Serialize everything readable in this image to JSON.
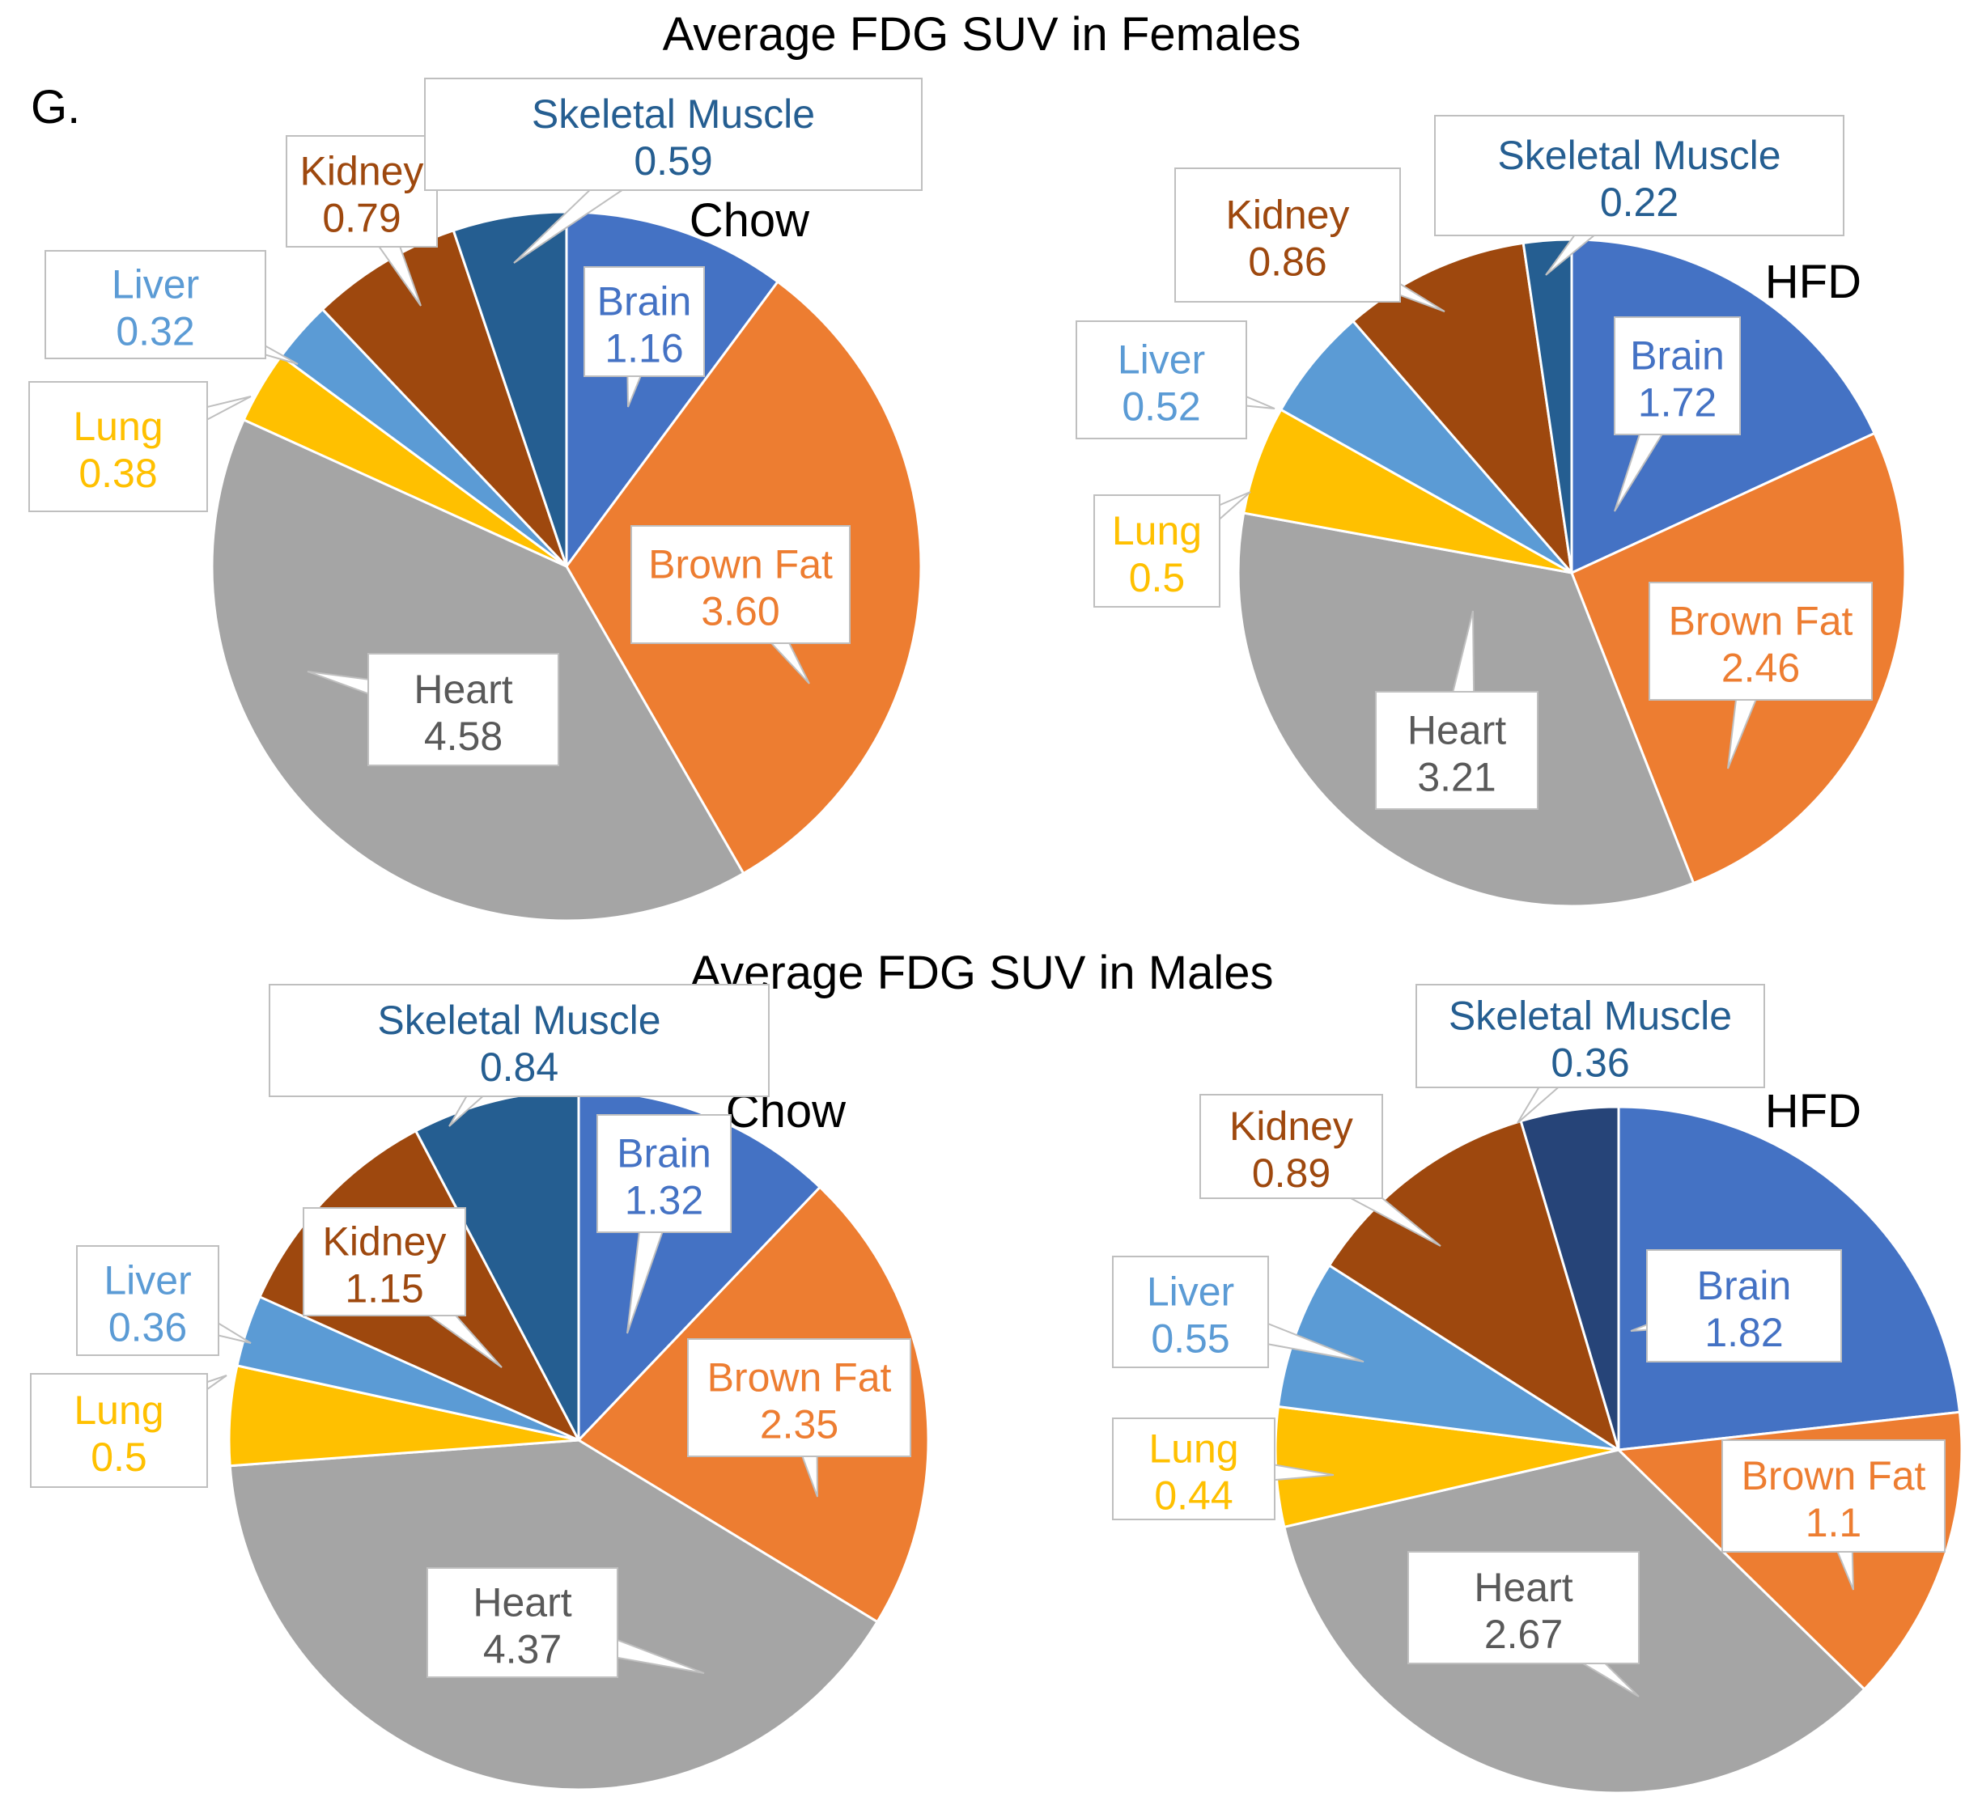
{
  "panel_label": "G.",
  "colors": {
    "Brain": "#4472C4",
    "Brown Fat": "#ED7D31",
    "Heart": "#A5A5A5",
    "Lung": "#FFC000",
    "Liver": "#5B9BD5",
    "Kidney": "#9E480E",
    "Skeletal Muscle": "#255E91",
    "Skeletal Muscle (dark)": "#264478",
    "Heart text": "#595959",
    "Brown Fat text": "#ED7D31",
    "Liver text": "#5B9BD5",
    "Lung text": "#FFC000",
    "Brain text": "#4472C4",
    "Kidney text": "#9E480E",
    "Skeletal Muscle text": "#255E91"
  },
  "chart_data": [
    {
      "type": "pie",
      "group_title": "Average FDG SUV in Females",
      "title": "Chow",
      "categories": [
        "Brain",
        "Brown Fat",
        "Heart",
        "Lung",
        "Liver",
        "Kidney",
        "Skeletal Muscle"
      ],
      "values": [
        1.16,
        3.6,
        4.58,
        0.38,
        0.32,
        0.79,
        0.59
      ],
      "labels": [
        "1.16",
        "3.60",
        "4.58",
        "0.38",
        "0.32",
        "0.79",
        "0.59"
      ]
    },
    {
      "type": "pie",
      "title": "HFD",
      "categories": [
        "Brain",
        "Brown Fat",
        "Heart",
        "Lung",
        "Liver",
        "Kidney",
        "Skeletal Muscle"
      ],
      "values": [
        1.72,
        2.46,
        3.21,
        0.5,
        0.52,
        0.86,
        0.22
      ],
      "labels": [
        "1.72",
        "2.46",
        "3.21",
        "0.5",
        "0.52",
        "0.86",
        "0.22"
      ]
    },
    {
      "type": "pie",
      "group_title": "Average FDG SUV in Males",
      "title": "Chow",
      "categories": [
        "Brain",
        "Brown Fat",
        "Heart",
        "Lung",
        "Liver",
        "Kidney",
        "Skeletal Muscle"
      ],
      "values": [
        1.32,
        2.35,
        4.37,
        0.5,
        0.36,
        1.15,
        0.84
      ],
      "labels": [
        "1.32",
        "2.35",
        "4.37",
        "0.5",
        "0.36",
        "1.15",
        "0.84"
      ]
    },
    {
      "type": "pie",
      "title": "HFD",
      "categories": [
        "Brain",
        "Brown Fat",
        "Heart",
        "Lung",
        "Liver",
        "Kidney",
        "Skeletal Muscle"
      ],
      "values": [
        1.82,
        1.1,
        2.67,
        0.44,
        0.55,
        0.89,
        0.36
      ],
      "labels": [
        "1.82",
        "1.1",
        "2.67",
        "0.44",
        "0.55",
        "0.89",
        "0.36"
      ]
    }
  ]
}
